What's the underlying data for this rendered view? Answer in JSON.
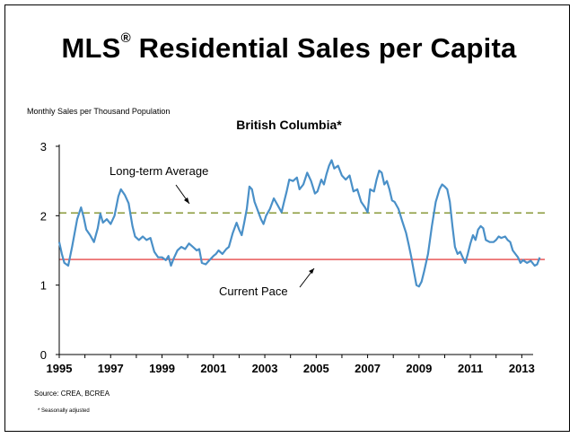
{
  "header": {
    "title_main": "MLS",
    "title_reg": "®",
    "title_rest": " Residential Sales per Capita"
  },
  "chart_data": {
    "type": "line",
    "title": "British Columbia*",
    "ylabel": "Monthly Sales  per Thousand Population",
    "xlabel": "",
    "ylim": [
      0,
      3
    ],
    "xlim": [
      1995,
      2014
    ],
    "yticks": [
      0,
      1,
      2,
      3
    ],
    "xticks": [
      1995,
      1997,
      1999,
      2001,
      2003,
      2005,
      2007,
      2009,
      2011,
      2013
    ],
    "grid": false,
    "series": [
      {
        "color": "#4a90c8",
        "points": [
          [
            1995.0,
            1.62
          ],
          [
            1995.1,
            1.45
          ],
          [
            1995.2,
            1.32
          ],
          [
            1995.35,
            1.28
          ],
          [
            1995.5,
            1.55
          ],
          [
            1995.7,
            1.95
          ],
          [
            1995.85,
            2.12
          ],
          [
            1995.95,
            1.98
          ],
          [
            1996.05,
            1.8
          ],
          [
            1996.2,
            1.72
          ],
          [
            1996.35,
            1.62
          ],
          [
            1996.5,
            1.82
          ],
          [
            1996.6,
            2.03
          ],
          [
            1996.7,
            1.9
          ],
          [
            1996.85,
            1.95
          ],
          [
            1997.0,
            1.88
          ],
          [
            1997.15,
            2.0
          ],
          [
            1997.3,
            2.28
          ],
          [
            1997.4,
            2.38
          ],
          [
            1997.55,
            2.3
          ],
          [
            1997.7,
            2.18
          ],
          [
            1997.85,
            1.85
          ],
          [
            1997.95,
            1.7
          ],
          [
            1998.1,
            1.65
          ],
          [
            1998.25,
            1.7
          ],
          [
            1998.4,
            1.65
          ],
          [
            1998.55,
            1.68
          ],
          [
            1998.7,
            1.48
          ],
          [
            1998.85,
            1.4
          ],
          [
            1999.0,
            1.4
          ],
          [
            1999.15,
            1.36
          ],
          [
            1999.25,
            1.42
          ],
          [
            1999.35,
            1.28
          ],
          [
            1999.45,
            1.38
          ],
          [
            1999.6,
            1.5
          ],
          [
            1999.75,
            1.55
          ],
          [
            1999.9,
            1.52
          ],
          [
            2000.05,
            1.6
          ],
          [
            2000.2,
            1.55
          ],
          [
            2000.35,
            1.5
          ],
          [
            2000.45,
            1.52
          ],
          [
            2000.55,
            1.32
          ],
          [
            2000.7,
            1.3
          ],
          [
            2000.85,
            1.36
          ],
          [
            2001.0,
            1.42
          ],
          [
            2001.1,
            1.45
          ],
          [
            2001.2,
            1.5
          ],
          [
            2001.35,
            1.45
          ],
          [
            2001.5,
            1.52
          ],
          [
            2001.6,
            1.55
          ],
          [
            2001.75,
            1.75
          ],
          [
            2001.9,
            1.9
          ],
          [
            2002.0,
            1.8
          ],
          [
            2002.1,
            1.72
          ],
          [
            2002.2,
            1.9
          ],
          [
            2002.3,
            2.1
          ],
          [
            2002.4,
            2.42
          ],
          [
            2002.5,
            2.38
          ],
          [
            2002.6,
            2.2
          ],
          [
            2002.7,
            2.1
          ],
          [
            2002.85,
            1.95
          ],
          [
            2002.95,
            1.88
          ],
          [
            2003.05,
            2.0
          ],
          [
            2003.2,
            2.1
          ],
          [
            2003.35,
            2.25
          ],
          [
            2003.5,
            2.15
          ],
          [
            2003.65,
            2.05
          ],
          [
            2003.75,
            2.2
          ],
          [
            2003.85,
            2.35
          ],
          [
            2003.95,
            2.52
          ],
          [
            2004.1,
            2.5
          ],
          [
            2004.25,
            2.55
          ],
          [
            2004.35,
            2.38
          ],
          [
            2004.5,
            2.45
          ],
          [
            2004.65,
            2.62
          ],
          [
            2004.8,
            2.5
          ],
          [
            2004.95,
            2.32
          ],
          [
            2005.05,
            2.35
          ],
          [
            2005.2,
            2.52
          ],
          [
            2005.3,
            2.45
          ],
          [
            2005.4,
            2.6
          ],
          [
            2005.5,
            2.72
          ],
          [
            2005.6,
            2.8
          ],
          [
            2005.7,
            2.68
          ],
          [
            2005.85,
            2.72
          ],
          [
            2006.0,
            2.58
          ],
          [
            2006.15,
            2.52
          ],
          [
            2006.3,
            2.58
          ],
          [
            2006.45,
            2.35
          ],
          [
            2006.6,
            2.38
          ],
          [
            2006.75,
            2.2
          ],
          [
            2006.9,
            2.12
          ],
          [
            2007.0,
            2.05
          ],
          [
            2007.1,
            2.38
          ],
          [
            2007.25,
            2.35
          ],
          [
            2007.35,
            2.52
          ],
          [
            2007.45,
            2.65
          ],
          [
            2007.55,
            2.62
          ],
          [
            2007.65,
            2.45
          ],
          [
            2007.75,
            2.5
          ],
          [
            2007.85,
            2.38
          ],
          [
            2007.95,
            2.22
          ],
          [
            2008.05,
            2.2
          ],
          [
            2008.2,
            2.1
          ],
          [
            2008.35,
            1.92
          ],
          [
            2008.5,
            1.75
          ],
          [
            2008.6,
            1.58
          ],
          [
            2008.7,
            1.4
          ],
          [
            2008.8,
            1.2
          ],
          [
            2008.9,
            1.0
          ],
          [
            2009.0,
            0.98
          ],
          [
            2009.1,
            1.05
          ],
          [
            2009.2,
            1.2
          ],
          [
            2009.35,
            1.45
          ],
          [
            2009.5,
            1.85
          ],
          [
            2009.65,
            2.2
          ],
          [
            2009.8,
            2.38
          ],
          [
            2009.9,
            2.45
          ],
          [
            2010.0,
            2.42
          ],
          [
            2010.1,
            2.38
          ],
          [
            2010.2,
            2.2
          ],
          [
            2010.3,
            1.85
          ],
          [
            2010.4,
            1.55
          ],
          [
            2010.5,
            1.45
          ],
          [
            2010.6,
            1.48
          ],
          [
            2010.7,
            1.4
          ],
          [
            2010.8,
            1.32
          ],
          [
            2010.9,
            1.45
          ],
          [
            2011.0,
            1.6
          ],
          [
            2011.1,
            1.72
          ],
          [
            2011.2,
            1.65
          ],
          [
            2011.3,
            1.8
          ],
          [
            2011.4,
            1.85
          ],
          [
            2011.5,
            1.82
          ],
          [
            2011.6,
            1.65
          ],
          [
            2011.75,
            1.62
          ],
          [
            2011.9,
            1.62
          ],
          [
            2012.0,
            1.65
          ],
          [
            2012.1,
            1.7
          ],
          [
            2012.2,
            1.68
          ],
          [
            2012.35,
            1.7
          ],
          [
            2012.45,
            1.65
          ],
          [
            2012.55,
            1.62
          ],
          [
            2012.65,
            1.5
          ],
          [
            2012.75,
            1.45
          ],
          [
            2012.85,
            1.4
          ],
          [
            2012.95,
            1.32
          ],
          [
            2013.05,
            1.36
          ],
          [
            2013.2,
            1.32
          ],
          [
            2013.35,
            1.35
          ],
          [
            2013.5,
            1.28
          ],
          [
            2013.6,
            1.3
          ],
          [
            2013.7,
            1.4
          ]
        ]
      }
    ],
    "reference_lines": [
      {
        "y": 2.04,
        "color": "#8a9a3a",
        "style": "dashed"
      },
      {
        "y": 1.37,
        "color": "#e02020",
        "style": "solid"
      }
    ],
    "annotations": [
      {
        "text": "Long-term Average"
      },
      {
        "text": "Current Pace"
      }
    ]
  },
  "footer": {
    "source": "Source: CREA, BCREA",
    "note": "* Seasonally adjusted"
  }
}
